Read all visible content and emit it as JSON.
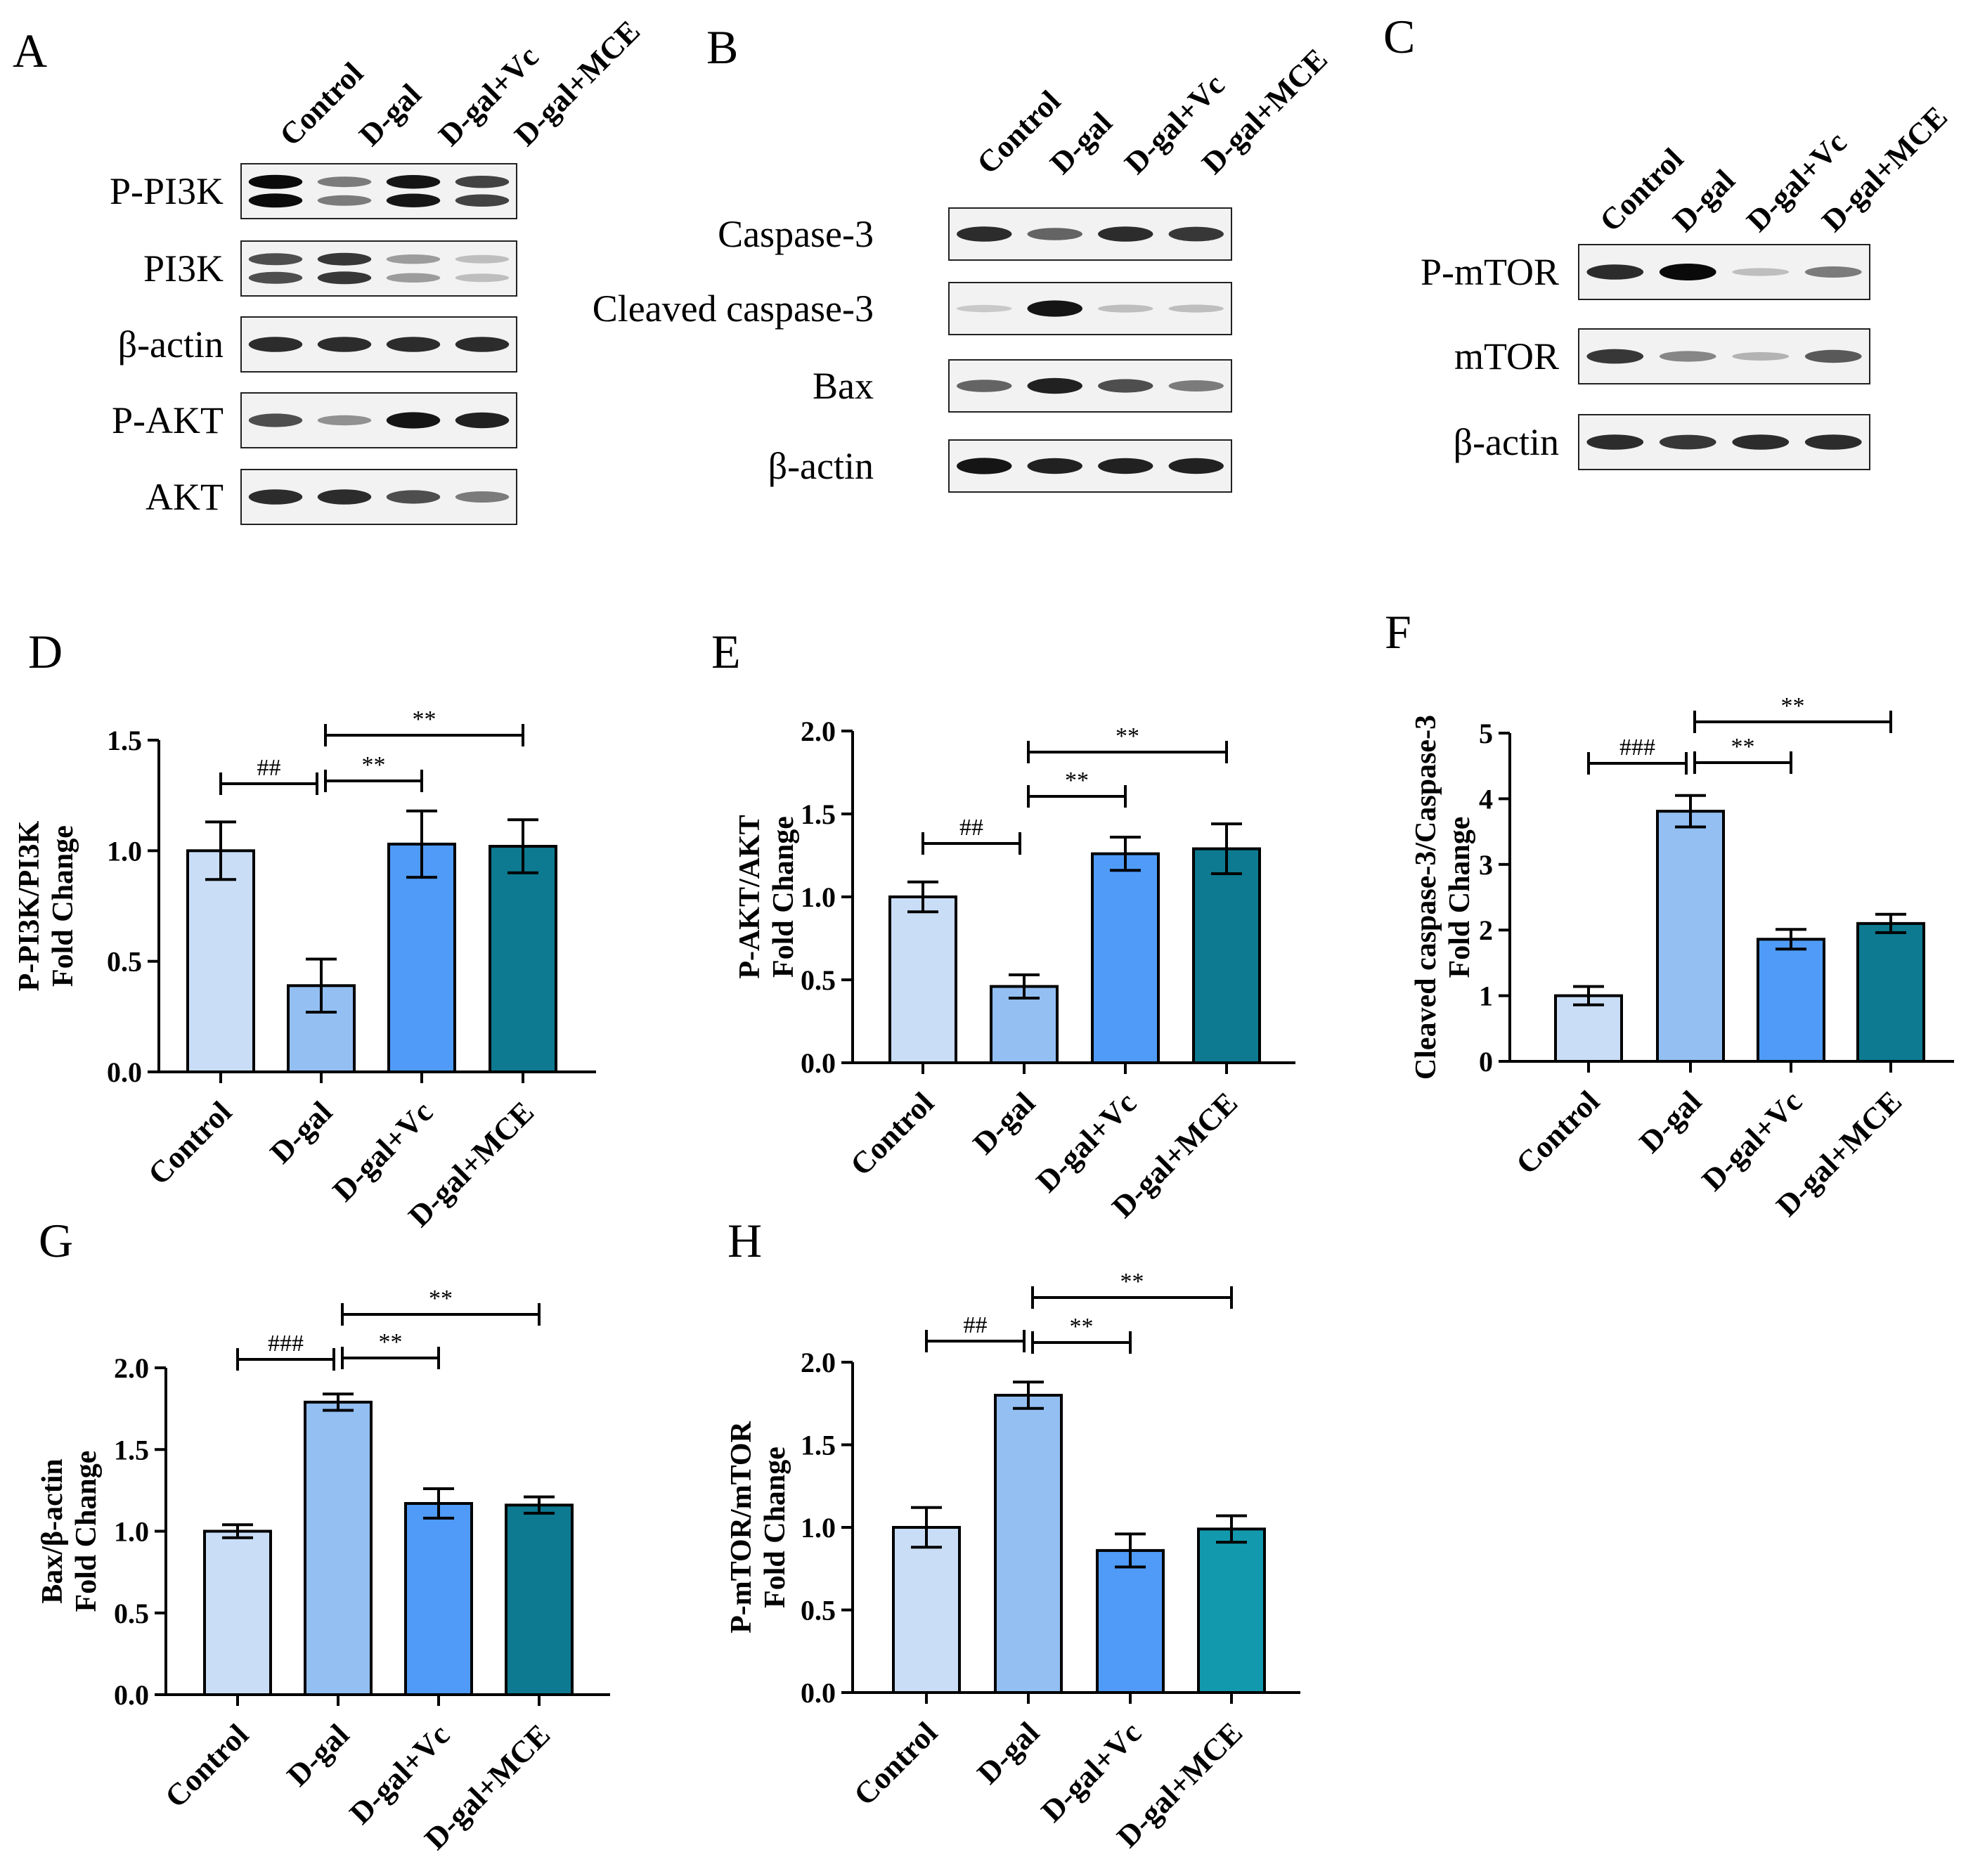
{
  "groups": [
    "Control",
    "D-gal",
    "D-gal+Vc",
    "D-gal+MCE"
  ],
  "colors": {
    "control": "#c9ddf6",
    "dgal": "#93bff2",
    "dgal_vc": "#4f9bf7",
    "dgal_mce": "#0d7a91",
    "dgal_mce_h": "#1399ae"
  },
  "blots": [
    {
      "panel": "A",
      "rows": [
        {
          "label": "P-PI3K",
          "intensity": [
            1.0,
            0.5,
            0.95,
            0.75
          ],
          "double_band": true
        },
        {
          "label": "PI3K",
          "intensity": [
            0.7,
            0.8,
            0.35,
            0.2
          ],
          "double_band": true
        },
        {
          "label": "β-actin",
          "intensity": [
            0.85,
            0.85,
            0.85,
            0.85
          ],
          "double_band": false
        },
        {
          "label": "P-AKT",
          "intensity": [
            0.7,
            0.4,
            0.95,
            0.9
          ],
          "double_band": false
        },
        {
          "label": "AKT",
          "intensity": [
            0.85,
            0.85,
            0.7,
            0.5
          ],
          "double_band": false
        }
      ]
    },
    {
      "panel": "B",
      "rows": [
        {
          "label": "Caspase-3",
          "intensity": [
            0.85,
            0.6,
            0.85,
            0.8
          ],
          "double_band": false
        },
        {
          "label": "Cleaved caspase-3",
          "intensity": [
            0.15,
            0.95,
            0.2,
            0.2
          ],
          "double_band": false
        },
        {
          "label": "Bax",
          "intensity": [
            0.6,
            0.9,
            0.7,
            0.5
          ],
          "double_band": false
        },
        {
          "label": "β-actin",
          "intensity": [
            0.95,
            0.9,
            0.9,
            0.9
          ],
          "double_band": false
        }
      ]
    },
    {
      "panel": "C",
      "rows": [
        {
          "label": "P-mTOR",
          "intensity": [
            0.85,
            1.0,
            0.2,
            0.5
          ],
          "double_band": false
        },
        {
          "label": "mTOR",
          "intensity": [
            0.8,
            0.45,
            0.25,
            0.65
          ],
          "double_band": false
        },
        {
          "label": "β-actin",
          "intensity": [
            0.85,
            0.8,
            0.85,
            0.85
          ],
          "double_band": false
        }
      ]
    }
  ],
  "chart_data": [
    {
      "panel": "D",
      "type": "bar",
      "categories": [
        "Control",
        "D-gal",
        "D-gal+Vc",
        "D-gal+MCE"
      ],
      "values": [
        1.0,
        0.39,
        1.03,
        1.02
      ],
      "errors": [
        0.13,
        0.12,
        0.15,
        0.12
      ],
      "ylim": [
        0,
        1.5
      ],
      "yticks": [
        "0.0",
        "0.5",
        "1.0",
        "1.5"
      ],
      "ylabel": [
        "P-PI3K/PI3K",
        "Fold Change"
      ],
      "significance": [
        {
          "from": 0,
          "to": 1,
          "label": "##"
        },
        {
          "from": 1,
          "to": 2,
          "label": "**"
        },
        {
          "from": 1,
          "to": 3,
          "label": "**"
        }
      ]
    },
    {
      "panel": "E",
      "type": "bar",
      "categories": [
        "Control",
        "D-gal",
        "D-gal+Vc",
        "D-gal+MCE"
      ],
      "values": [
        1.0,
        0.46,
        1.26,
        1.29
      ],
      "errors": [
        0.09,
        0.07,
        0.1,
        0.15
      ],
      "ylim": [
        0,
        2.0
      ],
      "yticks": [
        "0.0",
        "0.5",
        "1.0",
        "1.5",
        "2.0"
      ],
      "ylabel": [
        "P-AKT/AKT",
        "Fold Change"
      ],
      "significance": [
        {
          "from": 0,
          "to": 1,
          "label": "##"
        },
        {
          "from": 1,
          "to": 2,
          "label": "**"
        },
        {
          "from": 1,
          "to": 3,
          "label": "**"
        }
      ]
    },
    {
      "panel": "F",
      "type": "bar",
      "categories": [
        "Control",
        "D-gal",
        "D-gal+Vc",
        "D-gal+MCE"
      ],
      "values": [
        1.0,
        3.81,
        1.86,
        2.1
      ],
      "errors": [
        0.14,
        0.24,
        0.15,
        0.14
      ],
      "ylim": [
        0,
        5
      ],
      "yticks": [
        "0",
        "1",
        "2",
        "3",
        "4",
        "5"
      ],
      "ylabel": [
        "Cleaved caspase-3/Caspase-3",
        "Fold Change"
      ],
      "significance": [
        {
          "from": 0,
          "to": 1,
          "label": "###"
        },
        {
          "from": 1,
          "to": 2,
          "label": "**"
        },
        {
          "from": 1,
          "to": 3,
          "label": "**"
        }
      ]
    },
    {
      "panel": "G",
      "type": "bar",
      "categories": [
        "Control",
        "D-gal",
        "D-gal+Vc",
        "D-gal+MCE"
      ],
      "values": [
        1.0,
        1.79,
        1.17,
        1.16
      ],
      "errors": [
        0.04,
        0.05,
        0.09,
        0.05
      ],
      "ylim": [
        0,
        2.0
      ],
      "yticks": [
        "0.0",
        "0.5",
        "1.0",
        "1.5",
        "2.0"
      ],
      "ylabel": [
        "Bax/β-actin",
        "Fold Change"
      ],
      "significance": [
        {
          "from": 0,
          "to": 1,
          "label": "###"
        },
        {
          "from": 1,
          "to": 2,
          "label": "**"
        },
        {
          "from": 1,
          "to": 3,
          "label": "**"
        }
      ]
    },
    {
      "panel": "H",
      "type": "bar",
      "categories": [
        "Control",
        "D-gal",
        "D-gal+Vc",
        "D-gal+MCE"
      ],
      "values": [
        1.0,
        1.8,
        0.86,
        0.99
      ],
      "errors": [
        0.12,
        0.08,
        0.1,
        0.08
      ],
      "ylim": [
        0,
        2.0
      ],
      "yticks": [
        "0.0",
        "0.5",
        "1.0",
        "1.5",
        "2.0"
      ],
      "ylabel": [
        "P-mTOR/mTOR",
        "Fold Change"
      ],
      "significance": [
        {
          "from": 0,
          "to": 1,
          "label": "##"
        },
        {
          "from": 1,
          "to": 2,
          "label": "**"
        },
        {
          "from": 1,
          "to": 3,
          "label": "**"
        }
      ]
    }
  ]
}
